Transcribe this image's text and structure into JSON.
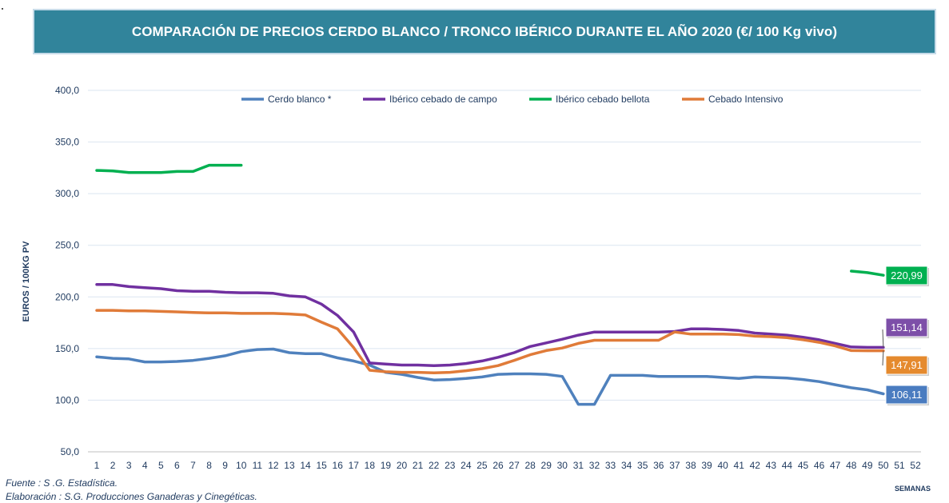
{
  "title": "COMPARACIÓN DE PRECIOS CERDO BLANCO / TRONCO IBÉRICO DURANTE EL AÑO 2020 (€/ 100 Kg vivo)",
  "footer": {
    "source": "Fuente :  S .G. Estadística.",
    "elaboration": "Elaboración : S.G. Producciones Ganaderas y Cinegéticas."
  },
  "chart_data": {
    "type": "line",
    "xlabel": "SEMANAS",
    "ylabel": "EUROS / 100KG PV",
    "ylim": [
      50,
      400
    ],
    "yticks": [
      "50,0",
      "100,0",
      "150,0",
      "200,0",
      "250,0",
      "300,0",
      "350,0",
      "400,0"
    ],
    "x": [
      1,
      2,
      3,
      4,
      5,
      6,
      7,
      8,
      9,
      10,
      11,
      12,
      13,
      14,
      15,
      16,
      17,
      18,
      19,
      20,
      21,
      22,
      23,
      24,
      25,
      26,
      27,
      28,
      29,
      30,
      31,
      32,
      33,
      34,
      35,
      36,
      37,
      38,
      39,
      40,
      41,
      42,
      43,
      44,
      45,
      46,
      47,
      48,
      49,
      50,
      51,
      52
    ],
    "grid": "horizontal",
    "legend_position": "top",
    "series": [
      {
        "name": "Cerdo blanco *",
        "color": "#4f81bd",
        "values": [
          142,
          140.5,
          140,
          137,
          137,
          137.5,
          138.5,
          140.5,
          143,
          147,
          149,
          149.5,
          146,
          145,
          145,
          141,
          138,
          134,
          127,
          125,
          122,
          119.5,
          120,
          121,
          122.5,
          125,
          125.5,
          125.5,
          125,
          123,
          96,
          96,
          124,
          124,
          124,
          123,
          123,
          123,
          123,
          122,
          121,
          122.5,
          122,
          121.5,
          120,
          118,
          115,
          112,
          110,
          106.11,
          null,
          null
        ],
        "end_label": "106,11"
      },
      {
        "name": "Ibérico cebado de campo",
        "color": "#7030a0",
        "values": [
          212,
          212,
          210,
          209,
          208,
          206,
          205.5,
          205.5,
          204.5,
          204,
          204,
          203.5,
          201,
          200,
          193,
          182,
          166,
          136,
          135,
          134,
          134,
          133.5,
          134,
          135.5,
          138,
          141.5,
          146,
          152,
          155.5,
          159,
          163,
          166,
          166,
          166,
          166,
          166,
          166.5,
          169,
          169,
          168.5,
          167.5,
          165,
          164,
          163,
          161,
          158.5,
          155,
          151.5,
          151.14,
          151.14,
          null,
          null
        ],
        "end_label": "151,14"
      },
      {
        "name": "Ibérico cebado bellota",
        "color": "#00b050",
        "values": [
          322.5,
          322,
          320.5,
          320.5,
          320.5,
          321.5,
          321.5,
          327.5,
          327.5,
          327.5,
          null,
          null,
          null,
          null,
          null,
          null,
          null,
          null,
          null,
          null,
          null,
          null,
          null,
          null,
          null,
          null,
          null,
          null,
          null,
          null,
          null,
          null,
          null,
          null,
          null,
          null,
          null,
          null,
          null,
          null,
          null,
          null,
          null,
          null,
          null,
          null,
          null,
          225,
          223.5,
          220.99,
          null,
          null
        ],
        "end_label": "220,99"
      },
      {
        "name": "Cebado Intensivo",
        "color": "#e07b39",
        "values": [
          187,
          187,
          186.5,
          186.5,
          186,
          185.5,
          185,
          184.5,
          184.5,
          184,
          184,
          184,
          183.5,
          182.5,
          175.5,
          169,
          151,
          129,
          127.5,
          127,
          127,
          126.5,
          127,
          128.5,
          130.5,
          133.5,
          138.5,
          144,
          148,
          150.5,
          155,
          158,
          158,
          158,
          158,
          158,
          166,
          164,
          164,
          164,
          163.5,
          162,
          161.5,
          160.5,
          158.5,
          156,
          152.5,
          148,
          147.91,
          147.91,
          null,
          null
        ],
        "end_label": "147,91"
      }
    ]
  }
}
